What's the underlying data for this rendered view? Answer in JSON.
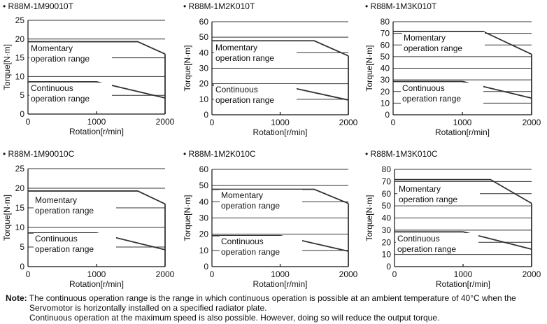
{
  "charts": [
    {
      "title": "R88M-1M90010T",
      "ylabel": "Torque[N·m]",
      "xlabel": "Rotation[r/min]",
      "xticks": [
        "0",
        "1000",
        "2000"
      ],
      "yticks": [
        "0",
        "5",
        "10",
        "15",
        "20",
        "25"
      ],
      "momentary_label": [
        "Momentary",
        "operation range"
      ],
      "continuous_label": [
        "Continuous",
        "operation range"
      ]
    },
    {
      "title": "R88M-1M2K010T",
      "ylabel": "Torque[N·m]",
      "xlabel": "Rotation[r/min]",
      "xticks": [
        "0",
        "1000",
        "2000"
      ],
      "yticks": [
        "0",
        "10",
        "20",
        "30",
        "40",
        "50",
        "60"
      ],
      "momentary_label": [
        "Momentary",
        "operation range"
      ],
      "continuous_label": [
        "Continuous",
        "operation range"
      ]
    },
    {
      "title": "R88M-1M3K010T",
      "ylabel": "Torque[N·m]",
      "xlabel": "Rotation[r/min]",
      "xticks": [
        "0",
        "1000",
        "2000"
      ],
      "yticks": [
        "0",
        "10",
        "20",
        "30",
        "40",
        "50",
        "60",
        "70",
        "80"
      ],
      "momentary_label": [
        "Momentary",
        "operation range"
      ],
      "continuous_label": [
        "Continuous",
        "operation range"
      ]
    },
    {
      "title": "R88M-1M90010C",
      "ylabel": "Torque[N·m]",
      "xlabel": "Rotation[r/min]",
      "xticks": [
        "0",
        "1000",
        "2000"
      ],
      "yticks": [
        "0",
        "5",
        "10",
        "15",
        "20",
        "25"
      ],
      "momentary_label": [
        "Momentary",
        "operation range"
      ],
      "continuous_label": [
        "Continuous",
        "operation range"
      ]
    },
    {
      "title": "R88M-1M2K010C",
      "ylabel": "Torque[N·m]",
      "xlabel": "Rotation[r/min]",
      "xticks": [
        "0",
        "1000",
        "2000"
      ],
      "yticks": [
        "0",
        "10",
        "20",
        "30",
        "40",
        "50",
        "60"
      ],
      "momentary_label": [
        "Momentary",
        "operation range"
      ],
      "continuous_label": [
        "Continuous",
        "operation range"
      ]
    },
    {
      "title": "R88M-1M3K010C",
      "ylabel": "Torque[N·m]",
      "xlabel": "Rotation[r/min]",
      "xticks": [
        "0",
        "1000",
        "2000"
      ],
      "yticks": [
        "0",
        "10",
        "20",
        "30",
        "40",
        "50",
        "60",
        "70",
        "80"
      ],
      "momentary_label": [
        "Momentary",
        "operation range"
      ],
      "continuous_label": [
        "Continuous",
        "operation range"
      ]
    }
  ],
  "chart_data": [
    {
      "type": "line",
      "title": "R88M-1M90010T",
      "xlabel": "Rotation[r/min]",
      "ylabel": "Torque[N·m]",
      "xlim": [
        0,
        2000
      ],
      "ylim": [
        0,
        25
      ],
      "grid": true,
      "series": [
        {
          "name": "Momentary operation range",
          "x": [
            0,
            1600,
            2000
          ],
          "y": [
            19.3,
            19.3,
            16
          ]
        },
        {
          "name": "Continuous operation range",
          "x": [
            0,
            1000,
            2000
          ],
          "y": [
            8.6,
            8.6,
            4.3
          ]
        }
      ]
    },
    {
      "type": "line",
      "title": "R88M-1M2K010T",
      "xlabel": "Rotation[r/min]",
      "ylabel": "Torque[N·m]",
      "xlim": [
        0,
        2000
      ],
      "ylim": [
        0,
        60
      ],
      "grid": true,
      "series": [
        {
          "name": "Momentary operation range",
          "x": [
            0,
            1500,
            2000
          ],
          "y": [
            47.7,
            47.7,
            38
          ]
        },
        {
          "name": "Continuous operation range",
          "x": [
            0,
            1000,
            2000
          ],
          "y": [
            19.1,
            19.1,
            9.5
          ]
        }
      ]
    },
    {
      "type": "line",
      "title": "R88M-1M3K010T",
      "xlabel": "Rotation[r/min]",
      "ylabel": "Torque[N·m]",
      "xlim": [
        0,
        2000
      ],
      "ylim": [
        0,
        80
      ],
      "grid": true,
      "series": [
        {
          "name": "Momentary operation range",
          "x": [
            0,
            1300,
            2000
          ],
          "y": [
            71.6,
            71.6,
            52
          ]
        },
        {
          "name": "Continuous operation range",
          "x": [
            0,
            1000,
            2000
          ],
          "y": [
            28.6,
            28.6,
            14.3
          ]
        }
      ]
    },
    {
      "type": "line",
      "title": "R88M-1M90010C",
      "xlabel": "Rotation[r/min]",
      "ylabel": "Torque[N·m]",
      "xlim": [
        0,
        2000
      ],
      "ylim": [
        0,
        25
      ],
      "grid": true,
      "series": [
        {
          "name": "Momentary operation range",
          "x": [
            0,
            1600,
            2000
          ],
          "y": [
            19.3,
            19.3,
            16
          ]
        },
        {
          "name": "Continuous operation range",
          "x": [
            0,
            1000,
            2000
          ],
          "y": [
            8.6,
            8.6,
            4.3
          ]
        }
      ]
    },
    {
      "type": "line",
      "title": "R88M-1M2K010C",
      "xlabel": "Rotation[r/min]",
      "ylabel": "Torque[N·m]",
      "xlim": [
        0,
        2000
      ],
      "ylim": [
        0,
        60
      ],
      "grid": true,
      "series": [
        {
          "name": "Momentary operation range",
          "x": [
            0,
            1500,
            2000
          ],
          "y": [
            47.7,
            47.7,
            39
          ]
        },
        {
          "name": "Continuous operation range",
          "x": [
            0,
            1000,
            2000
          ],
          "y": [
            19.1,
            19.1,
            9.5
          ]
        }
      ]
    },
    {
      "type": "line",
      "title": "R88M-1M3K010C",
      "xlabel": "Rotation[r/min]",
      "ylabel": "Torque[N·m]",
      "xlim": [
        0,
        2000
      ],
      "ylim": [
        0,
        80
      ],
      "grid": true,
      "series": [
        {
          "name": "Momentary operation range",
          "x": [
            0,
            1400,
            2000
          ],
          "y": [
            71.6,
            71.6,
            52
          ]
        },
        {
          "name": "Continuous operation range",
          "x": [
            0,
            1000,
            2000
          ],
          "y": [
            28.6,
            28.6,
            14.3
          ]
        }
      ]
    }
  ],
  "note": {
    "label": "Note:",
    "line1": "The continuous operation range is the range in which continuous operation is possible at an ambient temperature of 40°C when the",
    "line2": "Servomotor is horizontally installed on a specified radiator plate.",
    "line3": "Continuous operation at the maximum speed is also possible. However, doing so will reduce the output torque."
  }
}
